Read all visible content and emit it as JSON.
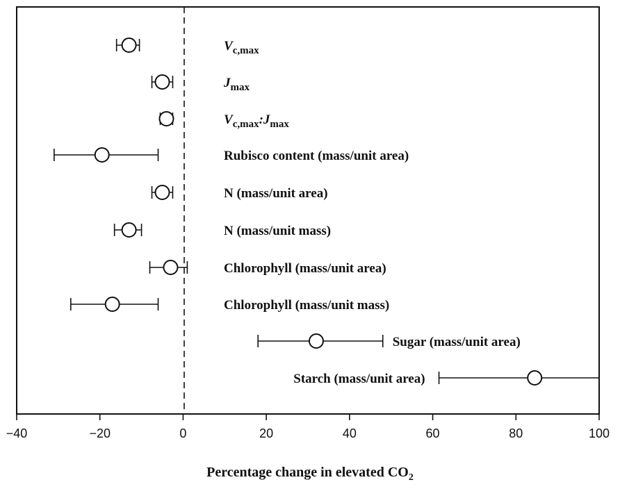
{
  "chart_data": {
    "type": "scatter",
    "xlabel": "Percentage change in elevated CO",
    "xlabel_subscript": "2",
    "xlim": [
      -40,
      100
    ],
    "xticks": [
      "−40",
      "−20",
      "0",
      "20",
      "40",
      "60",
      "80",
      "100"
    ],
    "xtick_values": [
      -40,
      -20,
      0,
      20,
      40,
      60,
      80,
      100
    ],
    "reference_line": {
      "x": 0,
      "style": "dashed"
    },
    "grid": false,
    "points": [
      {
        "label": "Vc,max",
        "label_parts": [
          [
            "V",
            "it"
          ],
          [
            "c,max",
            "sub"
          ]
        ],
        "value": -13,
        "lo": -16,
        "hi": -10.5,
        "label_side": "right-fixed"
      },
      {
        "label": "Jmax",
        "label_parts": [
          [
            "J",
            "it"
          ],
          [
            "max",
            "sub"
          ]
        ],
        "value": -5,
        "lo": -7.5,
        "hi": -2.5,
        "label_side": "right-fixed"
      },
      {
        "label": "Vc,max:Jmax",
        "label_parts": [
          [
            "V",
            "it"
          ],
          [
            "c,max",
            "sub"
          ],
          [
            ":",
            "it"
          ],
          [
            "J",
            "it"
          ],
          [
            "max",
            "sub"
          ]
        ],
        "value": -4,
        "lo": -5.5,
        "hi": -2.5,
        "label_side": "right-fixed"
      },
      {
        "label": "Rubisco content (mass/unit area)",
        "label_parts": [
          [
            "Rubisco content (mass/unit area)",
            "n"
          ]
        ],
        "value": -19.5,
        "lo": -31,
        "hi": -6,
        "label_side": "right-fixed"
      },
      {
        "label": "N (mass/unit area)",
        "label_parts": [
          [
            "N (mass/unit area)",
            "n"
          ]
        ],
        "value": -5,
        "lo": -7.5,
        "hi": -2.5,
        "label_side": "right-fixed"
      },
      {
        "label": "N (mass/unit mass)",
        "label_parts": [
          [
            "N (mass/unit mass)",
            "n"
          ]
        ],
        "value": -13,
        "lo": -16.5,
        "hi": -10,
        "label_side": "right-fixed"
      },
      {
        "label": "Chlorophyll (mass/unit area)",
        "label_parts": [
          [
            "Chlorophyll (mass/unit area)",
            "n"
          ]
        ],
        "value": -3,
        "lo": -8,
        "hi": 1,
        "label_side": "right-fixed"
      },
      {
        "label": "Chlorophyll (mass/unit mass)",
        "label_parts": [
          [
            "Chlorophyll (mass/unit mass)",
            "n"
          ]
        ],
        "value": -17,
        "lo": -27,
        "hi": -6,
        "label_side": "right-fixed"
      },
      {
        "label": "Sugar (mass/unit area)",
        "label_parts": [
          [
            "Sugar (mass/unit area)",
            "n"
          ]
        ],
        "value": 32,
        "lo": 18,
        "hi": 48,
        "label_side": "right-of-bar"
      },
      {
        "label": "Starch (mass/unit area)",
        "label_parts": [
          [
            "Starch (mass/unit area)",
            "n"
          ]
        ],
        "value": 84.5,
        "lo": 61.5,
        "hi": 100,
        "label_side": "left-of-bar"
      }
    ]
  }
}
